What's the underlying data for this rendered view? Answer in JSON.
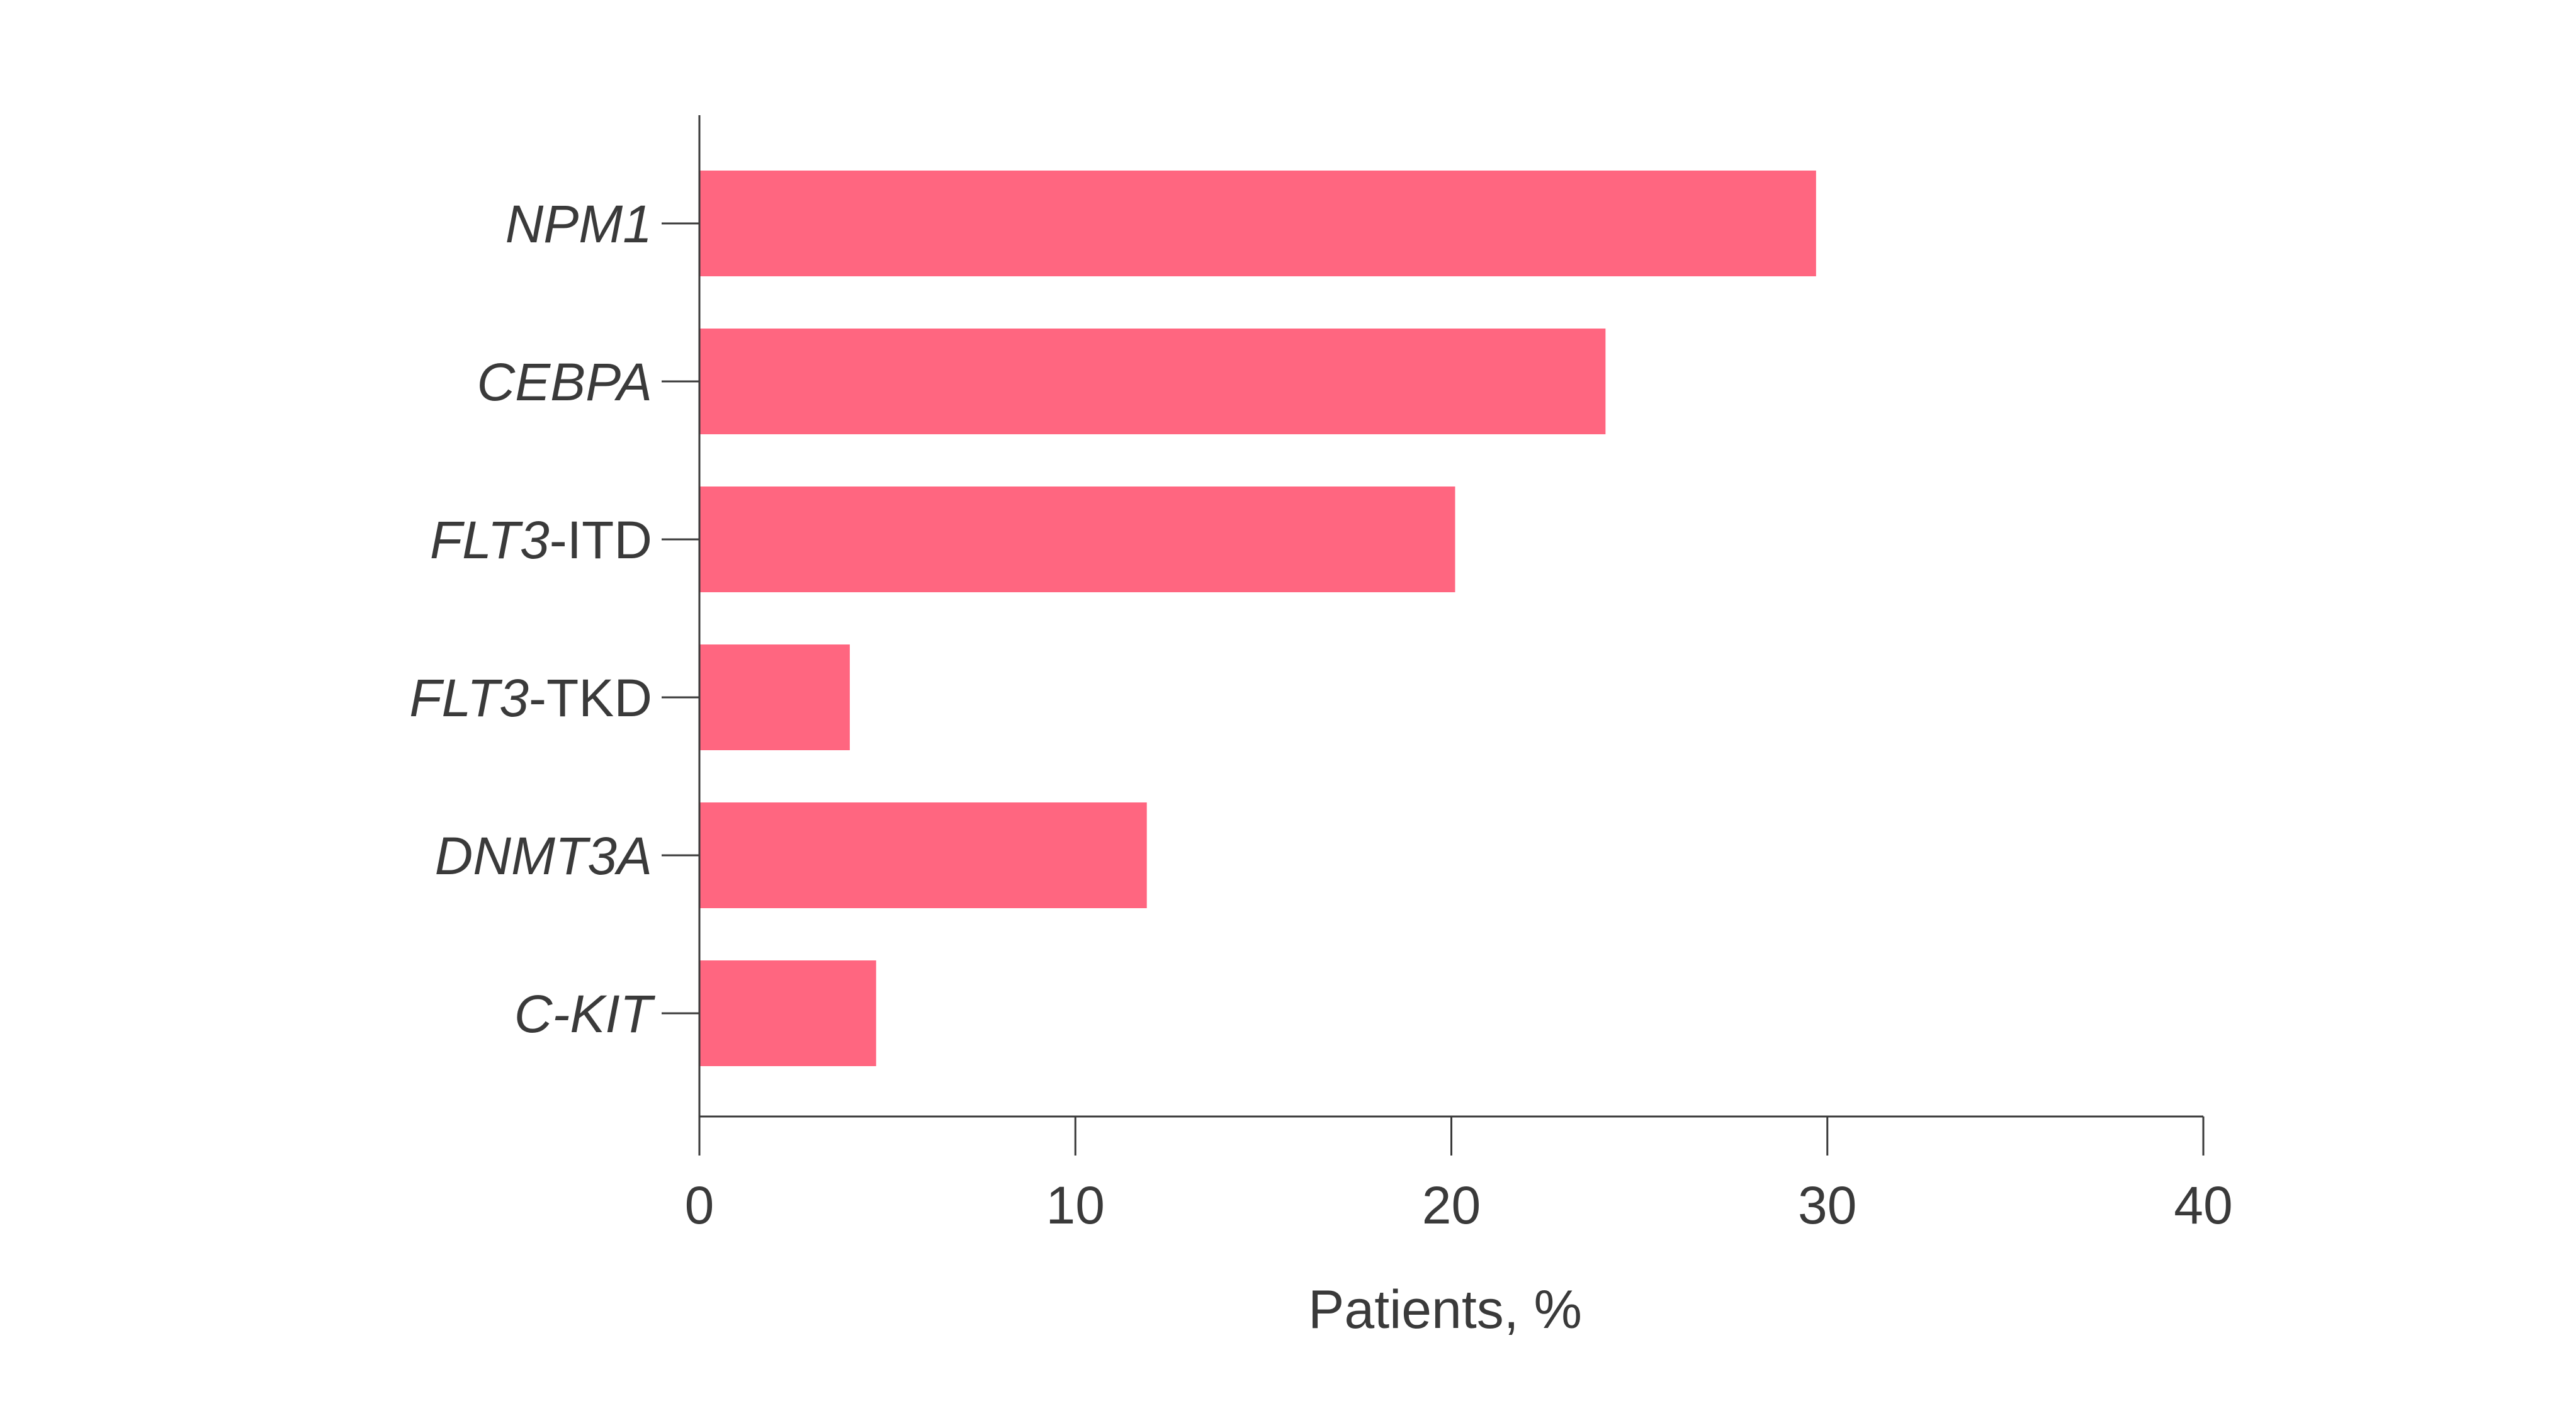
{
  "chart_data": {
    "type": "bar",
    "orientation": "horizontal",
    "categories": [
      {
        "italic": "NPM1",
        "rest": ""
      },
      {
        "italic": "CEBPA",
        "rest": ""
      },
      {
        "italic": "FLT3",
        "rest": "-ITD"
      },
      {
        "italic": "FLT3",
        "rest": "-TKD"
      },
      {
        "italic": "DNMT3A",
        "rest": ""
      },
      {
        "italic": "C-KIT",
        "rest": ""
      }
    ],
    "values": [
      29.7,
      24.1,
      20.1,
      4.0,
      11.9,
      4.7
    ],
    "xlabel": "Patients, %",
    "xlim": [
      0,
      40
    ],
    "xticks": [
      0,
      10,
      20,
      30,
      40
    ],
    "grid": false,
    "bar_color": "#ff6680",
    "axis_color": "#3a3a3a"
  }
}
